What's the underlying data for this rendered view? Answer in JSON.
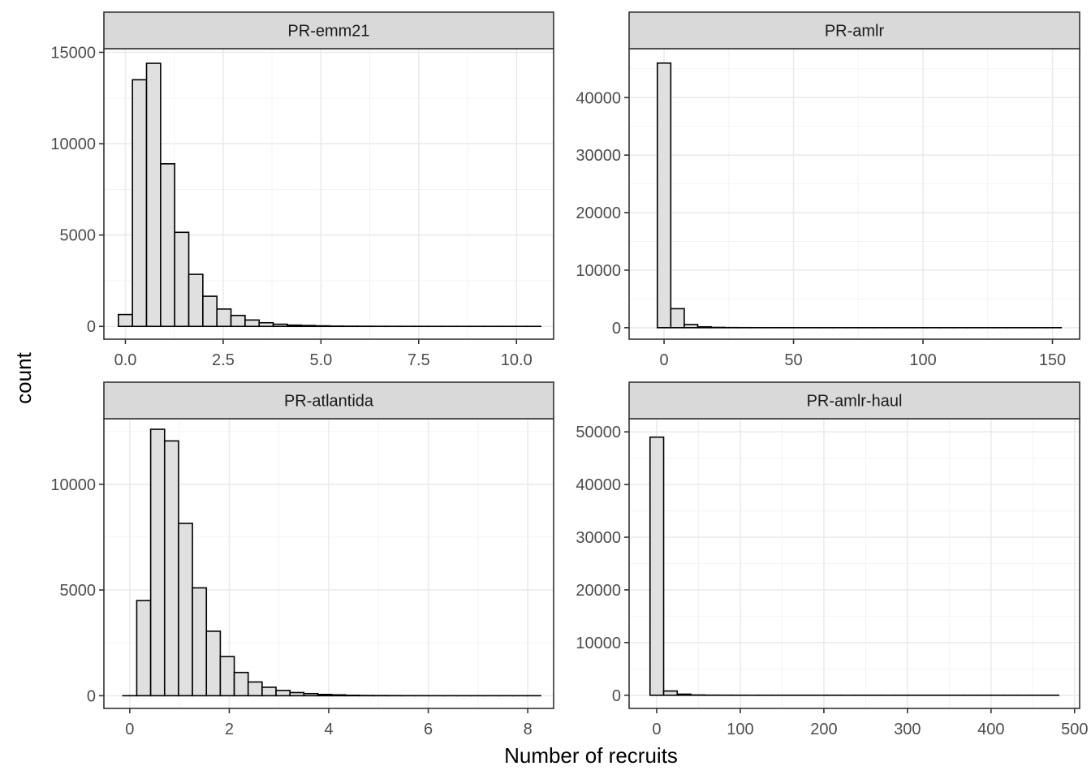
{
  "chart_data": {
    "type": "bar",
    "xlabel": "Number of recruits",
    "ylabel": "count",
    "grid": true,
    "colors": {
      "bar_fill": "#e0e0e0",
      "bar_stroke": "#000000",
      "strip_fill": "#d9d9d9",
      "grid": "#ebebeb",
      "panel_border": "#333333"
    },
    "panels": [
      {
        "title": "PR-emm21",
        "xlim": [
          -0.55,
          10.95
        ],
        "ylim": [
          -700,
          15200
        ],
        "xticks": [
          0,
          2.5,
          5,
          7.5,
          10
        ],
        "xtick_labels": [
          "0.0",
          "2.5",
          "5.0",
          "7.5",
          "10.0"
        ],
        "yticks": [
          0,
          5000,
          10000,
          15000
        ],
        "ytick_labels": [
          "0",
          "5000",
          "10000",
          "15000"
        ],
        "bin_start": -0.18,
        "bin_width": 0.36,
        "counts": [
          650,
          13500,
          14400,
          8900,
          5150,
          2850,
          1650,
          950,
          600,
          350,
          200,
          120,
          70,
          50,
          30,
          15,
          10,
          8,
          5,
          4,
          3,
          2,
          1,
          1,
          1,
          1,
          1,
          1,
          1,
          1
        ]
      },
      {
        "title": "PR-amlr",
        "xlim": [
          -13.5,
          160.5
        ],
        "ylim": [
          -2000,
          48500
        ],
        "xticks": [
          0,
          50,
          100,
          150
        ],
        "xtick_labels": [
          "0",
          "50",
          "100",
          "150"
        ],
        "yticks": [
          0,
          10000,
          20000,
          30000,
          40000
        ],
        "ytick_labels": [
          "0",
          "10000",
          "20000",
          "30000",
          "40000"
        ],
        "bin_start": -2.6,
        "bin_width": 5.2,
        "counts": [
          46000,
          3300,
          550,
          150,
          50,
          20,
          10,
          5,
          3,
          2,
          1,
          1,
          1,
          1,
          1,
          1,
          1,
          1,
          1,
          1,
          1,
          1,
          1,
          1,
          1,
          1,
          1,
          1,
          1,
          1
        ]
      },
      {
        "title": "PR-atlantida",
        "xlim": [
          -0.52,
          8.52
        ],
        "ylim": [
          -600,
          13100
        ],
        "xticks": [
          0,
          2,
          4,
          6,
          8
        ],
        "xtick_labels": [
          "0",
          "2",
          "4",
          "6",
          "8"
        ],
        "yticks": [
          0,
          5000,
          10000
        ],
        "ytick_labels": [
          "0",
          "5000",
          "10000"
        ],
        "bin_start": -0.14,
        "bin_width": 0.28,
        "counts": [
          0,
          4500,
          12600,
          12050,
          8150,
          5100,
          3050,
          1850,
          1100,
          650,
          400,
          250,
          150,
          100,
          60,
          40,
          20,
          10,
          8,
          5,
          3,
          2,
          1,
          1,
          1,
          1,
          1,
          1,
          1,
          1
        ]
      },
      {
        "title": "PR-amlr-haul",
        "xlim": [
          -33,
          506
        ],
        "ylim": [
          -2500,
          52500
        ],
        "xticks": [
          0,
          100,
          200,
          300,
          400,
          500
        ],
        "xtick_labels": [
          "0",
          "100",
          "200",
          "300",
          "400",
          "500"
        ],
        "yticks": [
          0,
          10000,
          20000,
          30000,
          40000,
          50000
        ],
        "ytick_labels": [
          "0",
          "10000",
          "20000",
          "30000",
          "40000",
          "50000"
        ],
        "bin_start": -8,
        "bin_width": 16.3,
        "counts": [
          49000,
          800,
          200,
          50,
          20,
          10,
          5,
          3,
          2,
          1,
          1,
          1,
          1,
          1,
          1,
          1,
          1,
          1,
          1,
          1,
          1,
          1,
          1,
          1,
          1,
          1,
          1,
          1,
          1,
          1
        ]
      }
    ]
  }
}
